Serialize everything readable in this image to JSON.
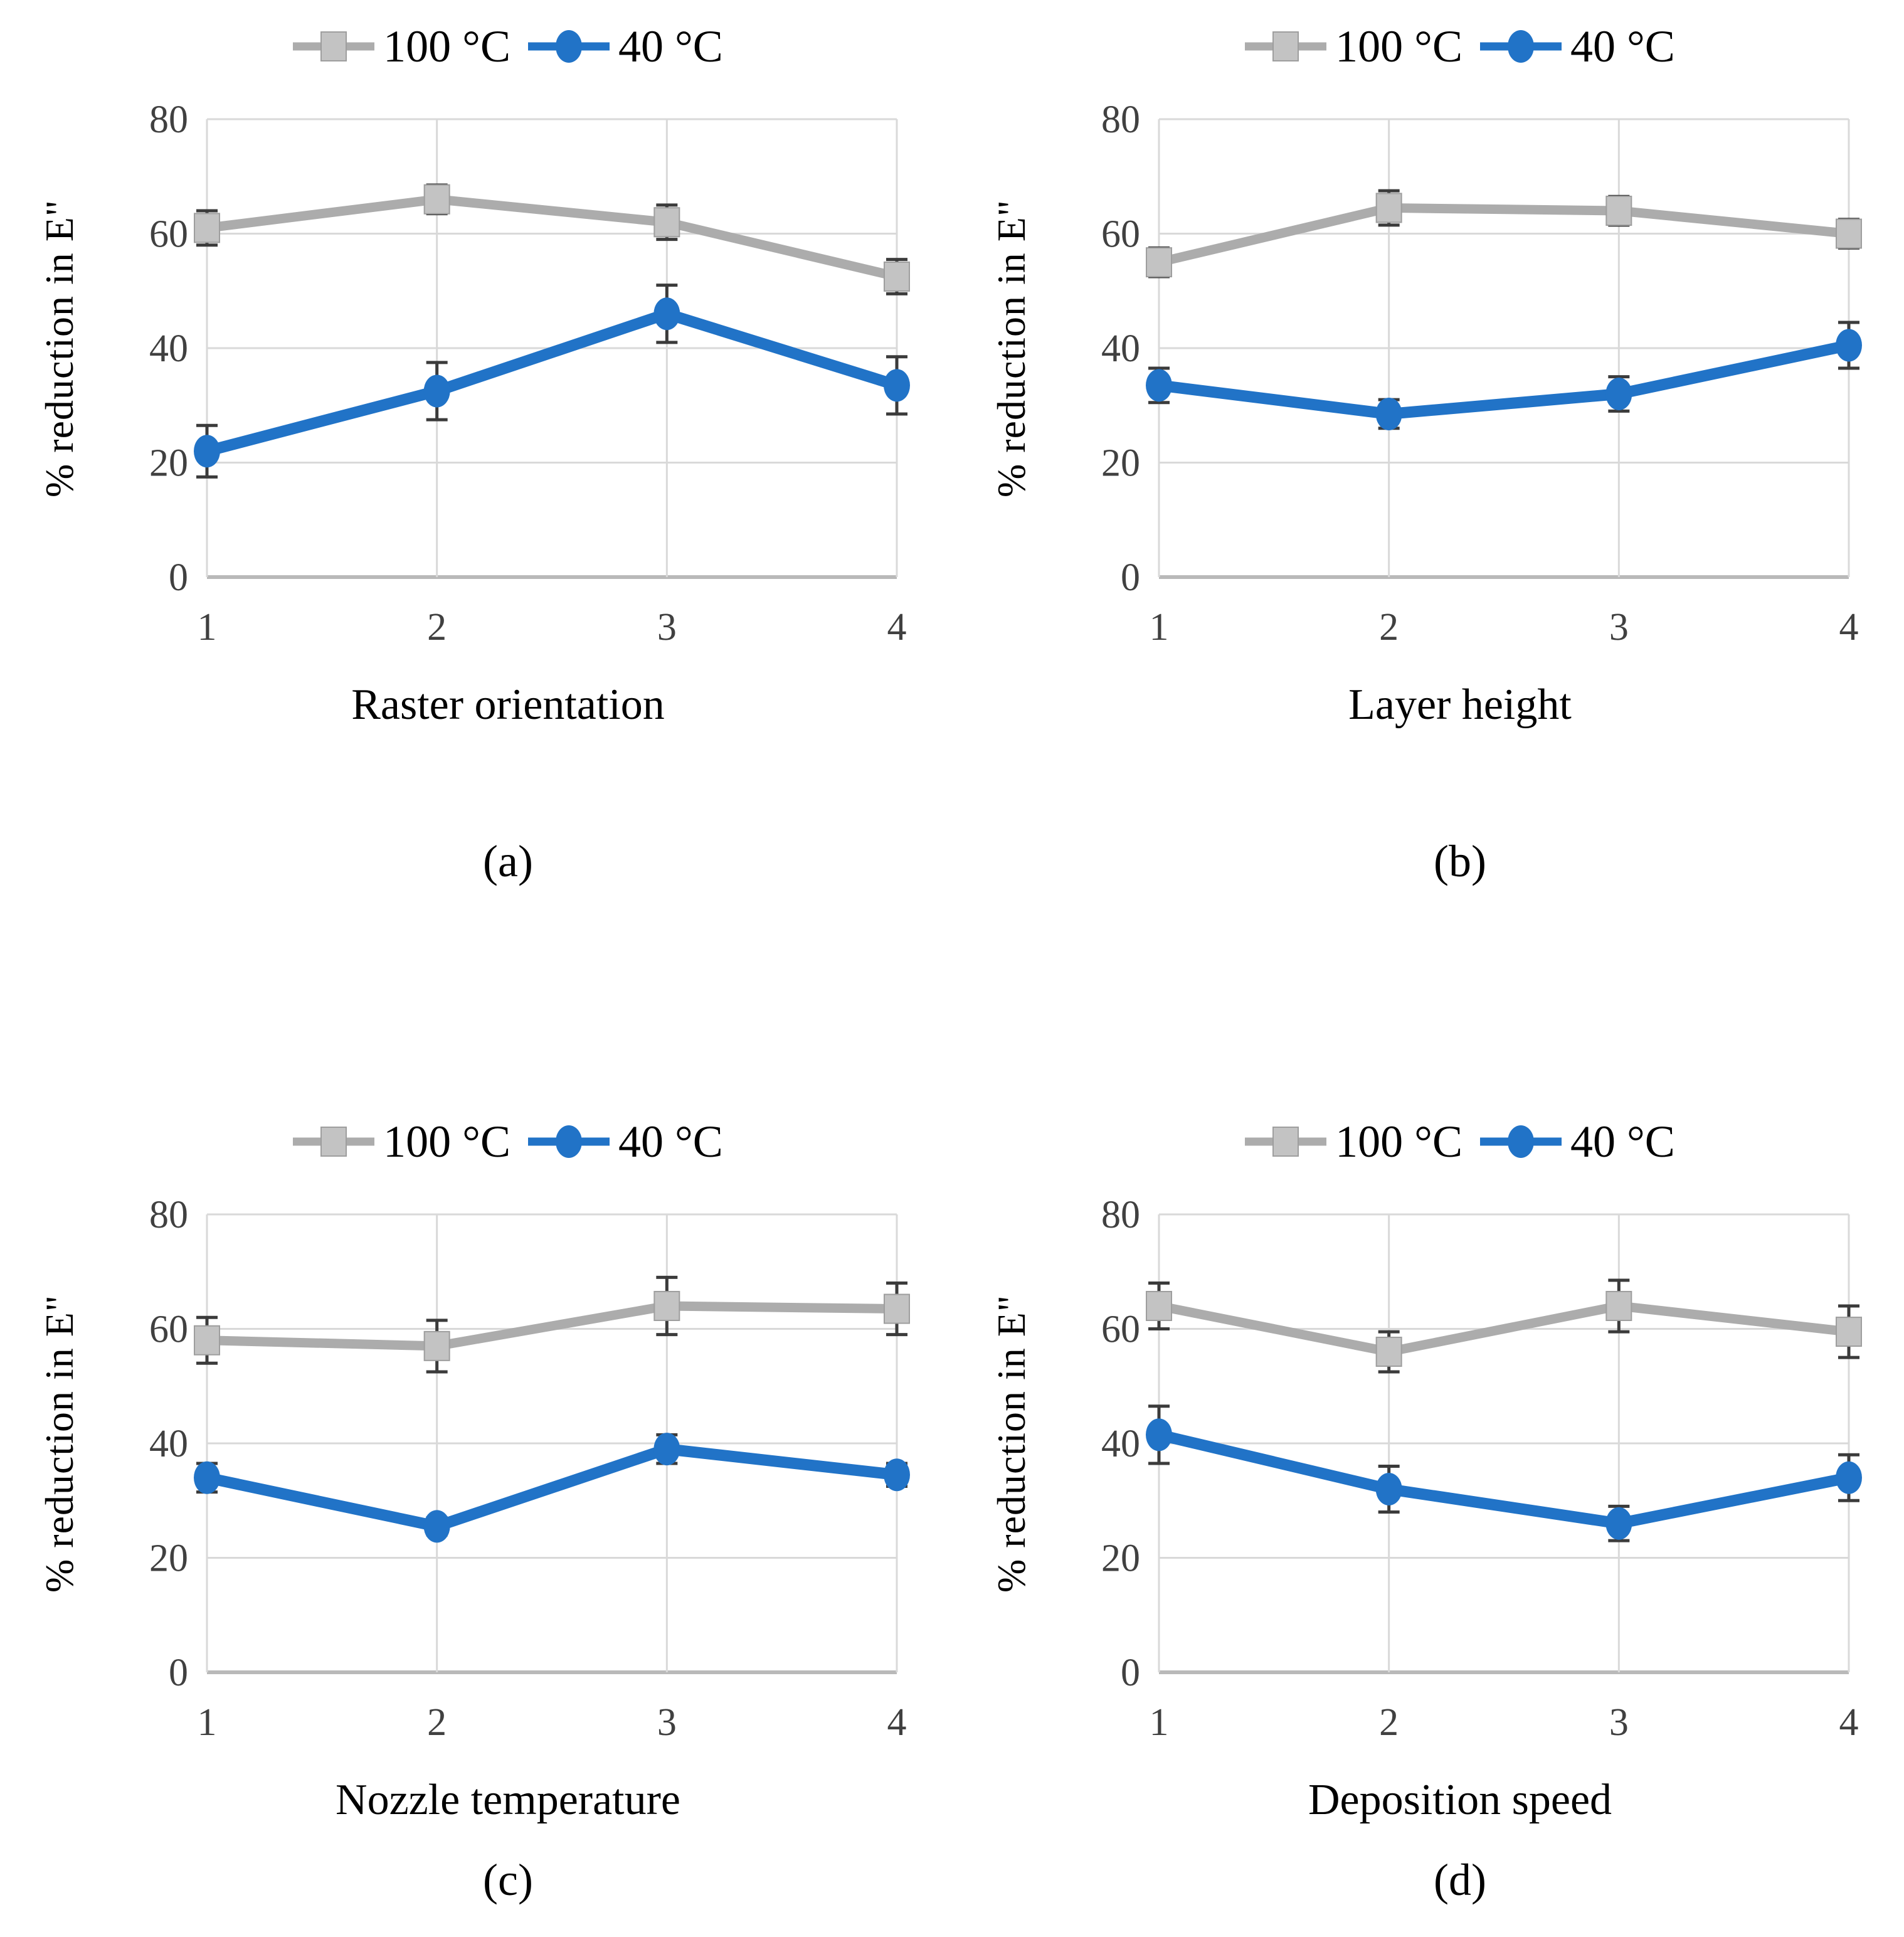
{
  "figure": {
    "background": "#ffffff",
    "grid_color": "#d9d9d9",
    "axis_color": "#b9b9b9",
    "tick_text_color": "#404040",
    "error_bar_color": "#3b3b3b"
  },
  "chart_data": [
    {
      "type": "line",
      "caption": "(a)",
      "xlabel": "Raster orientation",
      "ylabel": "% reduction in E\"",
      "x": [
        1,
        2,
        3,
        4
      ],
      "xticks": [
        "1",
        "2",
        "3",
        "4"
      ],
      "yticks": [
        0,
        20,
        40,
        60,
        80
      ],
      "xlim": [
        1,
        4
      ],
      "ylim": [
        0,
        80
      ],
      "grid": true,
      "legend_position": "top",
      "series": [
        {
          "name": "100 °C",
          "marker": "square",
          "color": "#acacac",
          "marker_fill": "#c3c3c3",
          "marker_stroke": "#9e9e9e",
          "values": [
            61,
            66,
            62,
            52.5
          ],
          "errors": [
            3,
            2.5,
            3,
            3
          ]
        },
        {
          "name": "40 °C",
          "marker": "circle",
          "color": "#2173c7",
          "marker_fill": "#2173c7",
          "marker_stroke": "#2173c7",
          "values": [
            22,
            32.5,
            46,
            33.5
          ],
          "errors": [
            4.5,
            5,
            5,
            5
          ]
        }
      ]
    },
    {
      "type": "line",
      "caption": "(b)",
      "xlabel": "Layer height",
      "ylabel": "% reduction in E\"",
      "x": [
        1,
        2,
        3,
        4
      ],
      "xticks": [
        "1",
        "2",
        "3",
        "4"
      ],
      "yticks": [
        0,
        20,
        40,
        60,
        80
      ],
      "xlim": [
        1,
        4
      ],
      "ylim": [
        0,
        80
      ],
      "grid": true,
      "legend_position": "top",
      "series": [
        {
          "name": "100 °C",
          "marker": "square",
          "color": "#acacac",
          "marker_fill": "#c3c3c3",
          "marker_stroke": "#9e9e9e",
          "values": [
            55,
            64.5,
            64,
            60
          ],
          "errors": [
            2.5,
            3,
            2.5,
            2.5
          ]
        },
        {
          "name": "40 °C",
          "marker": "circle",
          "color": "#2173c7",
          "marker_fill": "#2173c7",
          "marker_stroke": "#2173c7",
          "values": [
            33.5,
            28.5,
            32,
            40.5
          ],
          "errors": [
            3,
            2.5,
            3,
            4
          ]
        }
      ]
    },
    {
      "type": "line",
      "caption": "(c)",
      "xlabel": "Nozzle temperature",
      "ylabel": "% reduction in E\"",
      "x": [
        1,
        2,
        3,
        4
      ],
      "xticks": [
        "1",
        "2",
        "3",
        "4"
      ],
      "yticks": [
        0,
        20,
        40,
        60,
        80
      ],
      "xlim": [
        1,
        4
      ],
      "ylim": [
        0,
        80
      ],
      "grid": true,
      "legend_position": "top",
      "series": [
        {
          "name": "100 °C",
          "marker": "square",
          "color": "#acacac",
          "marker_fill": "#c3c3c3",
          "marker_stroke": "#9e9e9e",
          "values": [
            58,
            57,
            64,
            63.5
          ],
          "errors": [
            4,
            4.5,
            5,
            4.5
          ]
        },
        {
          "name": "40 °C",
          "marker": "circle",
          "color": "#2173c7",
          "marker_fill": "#2173c7",
          "marker_stroke": "#2173c7",
          "values": [
            34,
            25.5,
            39,
            34.5
          ],
          "errors": [
            2.5,
            1.5,
            2.5,
            2
          ]
        }
      ]
    },
    {
      "type": "line",
      "caption": "(d)",
      "xlabel": "Deposition speed",
      "ylabel": "% reduction in E\"",
      "x": [
        1,
        2,
        3,
        4
      ],
      "xticks": [
        "1",
        "2",
        "3",
        "4"
      ],
      "yticks": [
        0,
        20,
        40,
        60,
        80
      ],
      "xlim": [
        1,
        4
      ],
      "ylim": [
        0,
        80
      ],
      "grid": true,
      "legend_position": "top",
      "series": [
        {
          "name": "100 °C",
          "marker": "square",
          "color": "#acacac",
          "marker_fill": "#c3c3c3",
          "marker_stroke": "#9e9e9e",
          "values": [
            64,
            56,
            64,
            59.5
          ],
          "errors": [
            4,
            3.5,
            4.5,
            4.5
          ]
        },
        {
          "name": "40 °C",
          "marker": "circle",
          "color": "#2173c7",
          "marker_fill": "#2173c7",
          "marker_stroke": "#2173c7",
          "values": [
            41.5,
            32,
            26,
            34
          ],
          "errors": [
            5,
            4,
            3,
            4
          ]
        }
      ]
    }
  ]
}
